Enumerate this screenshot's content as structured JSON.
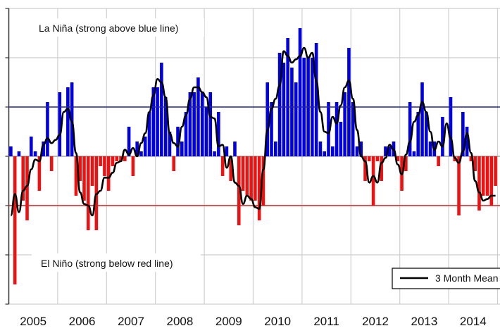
{
  "chart_data": {
    "type": "bar",
    "title": "",
    "xlabel": "",
    "ylabel": "",
    "ylim": [
      -30,
      30
    ],
    "ygrid_step": 10,
    "grid": true,
    "years": [
      "2005",
      "2006",
      "2007",
      "2008",
      "2009",
      "2010",
      "2011",
      "2012",
      "2013",
      "2014"
    ],
    "thresholds": {
      "la_nina": 10,
      "el_nino": -10
    },
    "annotations": {
      "la_nina": "La Niña (strong above blue line)",
      "el_nino": "El Niño (strong below red line)"
    },
    "legend": {
      "label": "3 Month Mean",
      "placement": "bottom-right"
    },
    "colors": {
      "positive": "#0000e0",
      "negative": "#ee1111",
      "la_nina_line": "#2424a8",
      "el_nino_line": "#d62020",
      "mean_line": "#000000",
      "grid": "#cfcfcf"
    },
    "monthly_values": [
      2,
      -26,
      1,
      -9,
      -13,
      4,
      1,
      -7,
      3,
      11,
      -3,
      0,
      13,
      0,
      14,
      15,
      -8,
      -5,
      -9,
      -15,
      -6,
      -15,
      -2,
      -4,
      -7,
      -2,
      -1,
      -1,
      -1,
      6,
      -4,
      3,
      1,
      4,
      9,
      14,
      14,
      19,
      12,
      5,
      -3,
      6,
      3,
      9,
      13,
      13,
      16,
      13,
      10,
      13,
      1,
      9,
      -4,
      2,
      -5,
      3,
      -14,
      -7,
      -8,
      -9,
      -9,
      -13,
      -10,
      15,
      11,
      3,
      21,
      19,
      24,
      18,
      15,
      26,
      20,
      20,
      20,
      23,
      3,
      1,
      11,
      2,
      11,
      7,
      13,
      22,
      11,
      2,
      3,
      -5,
      -1,
      -10,
      -1,
      -5,
      2,
      2,
      3,
      -1,
      -7,
      -3,
      11,
      1,
      9,
      15,
      9,
      3,
      3,
      -2,
      8,
      0,
      12,
      -1,
      -12,
      9,
      6,
      -1,
      -3,
      -11,
      -8,
      -8,
      -10,
      -6
    ]
  }
}
